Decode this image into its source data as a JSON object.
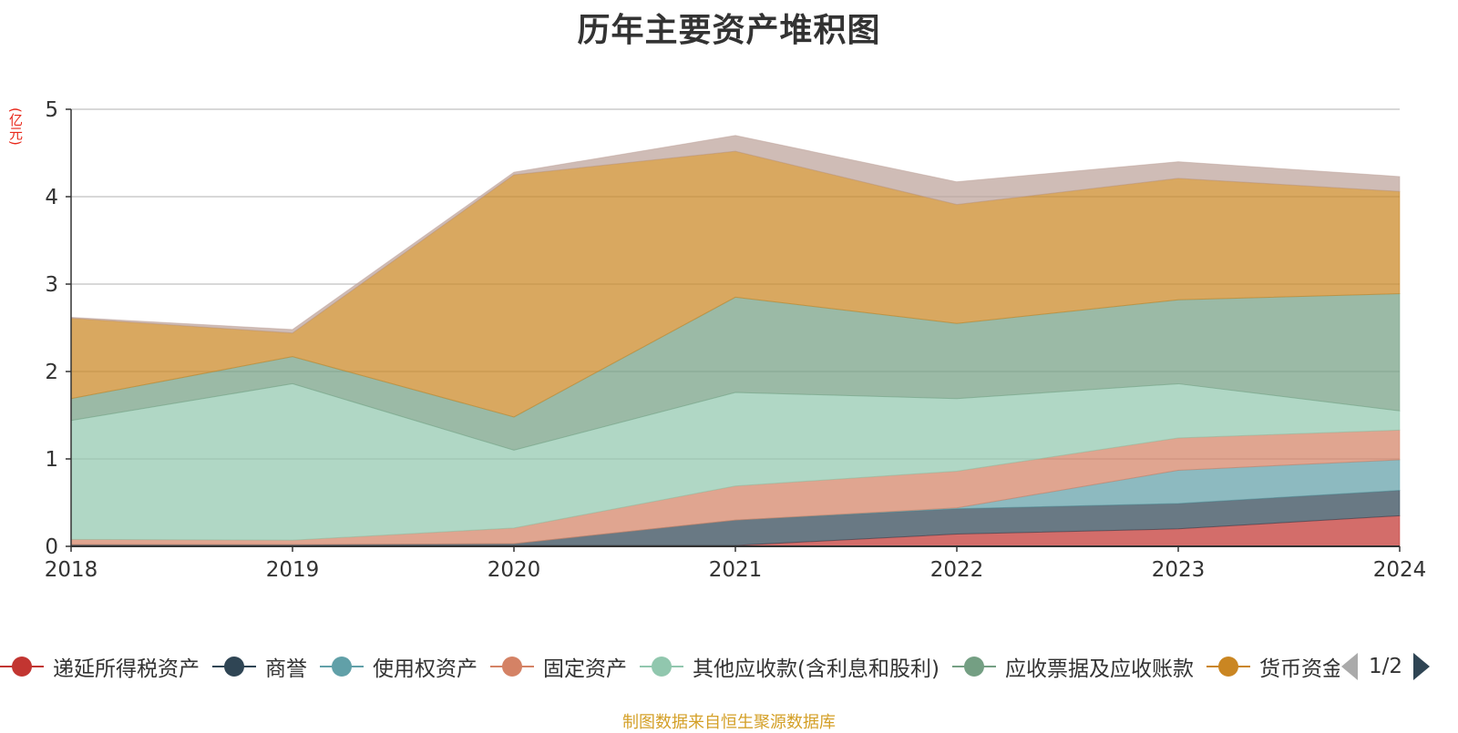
{
  "title": "历年主要资产堆积图",
  "unit_label": "(亿元)",
  "source": "制图数据来自恒生聚源数据库",
  "pager": {
    "text": "1/2"
  },
  "chart_data": {
    "type": "area",
    "stacked": true,
    "categories": [
      "2018",
      "2019",
      "2020",
      "2021",
      "2022",
      "2023",
      "2024"
    ],
    "ylim": [
      0,
      5
    ],
    "yticks": [
      0,
      1,
      2,
      3,
      4,
      5
    ],
    "grid": true,
    "legend_position": "bottom",
    "series": [
      {
        "name": "递延所得税资产",
        "color": "#c23531",
        "values": [
          0.01,
          0.01,
          0.01,
          0.01,
          0.14,
          0.2,
          0.35
        ]
      },
      {
        "name": "商誉",
        "color": "#2f4554",
        "values": [
          0.01,
          0.01,
          0.02,
          0.29,
          0.29,
          0.29,
          0.29
        ]
      },
      {
        "name": "使用权资产",
        "color": "#61a0a8",
        "values": [
          0,
          0,
          0,
          0,
          0.01,
          0.38,
          0.35
        ]
      },
      {
        "name": "固定资产",
        "color": "#d48265",
        "values": [
          0.06,
          0.05,
          0.18,
          0.39,
          0.42,
          0.37,
          0.34
        ]
      },
      {
        "name": "其他应收款(含利息和股利)",
        "color": "#91c7ae",
        "values": [
          1.36,
          1.79,
          0.89,
          1.07,
          0.83,
          0.62,
          0.22
        ]
      },
      {
        "name": "应收票据及应收账款",
        "color": "#749f83",
        "values": [
          0.25,
          0.31,
          0.38,
          1.09,
          0.86,
          0.96,
          1.34
        ]
      },
      {
        "name": "货币资金",
        "color": "#ca8622",
        "values": [
          0.92,
          0.27,
          2.77,
          1.67,
          1.36,
          1.39,
          1.17
        ]
      },
      {
        "name": "",
        "color": "#bda29a",
        "values": [
          0.01,
          0.04,
          0.03,
          0.18,
          0.26,
          0.19,
          0.17
        ],
        "legend_hidden": true
      }
    ]
  }
}
